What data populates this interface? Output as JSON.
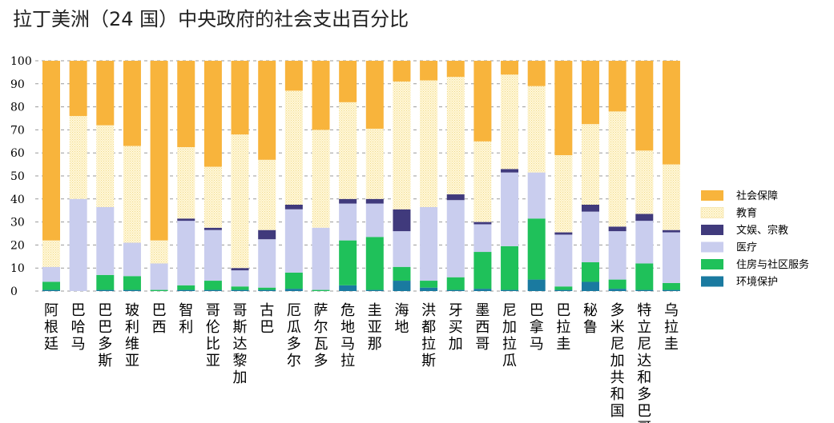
{
  "chart_data": {
    "type": "bar",
    "stacked": true,
    "title": "拉丁美洲（24 国）中央政府的社会支出百分比",
    "ylim": [
      0,
      100
    ],
    "yticks": [
      0,
      10,
      20,
      30,
      40,
      50,
      60,
      70,
      80,
      90,
      100
    ],
    "grid": true,
    "legend_position": "right",
    "categories": [
      "阿根廷",
      "巴哈马",
      "巴巴多斯",
      "玻利维亚",
      "巴西",
      "智利",
      "哥伦比亚",
      "哥斯达黎加",
      "古巴",
      "厄瓜多尔",
      "萨尔瓦多",
      "危地马拉",
      "圭亚那",
      "海地",
      "洪都拉斯",
      "牙买加",
      "墨西哥",
      "尼加拉瓜",
      "巴拿马",
      "巴拉圭",
      "秘鲁",
      "多米尼加共和国",
      "特立尼达和多巴哥",
      "乌拉圭"
    ],
    "series": [
      {
        "name": "环境保护",
        "color": "#1a7aa0",
        "values": [
          0.5,
          0,
          0.5,
          0.5,
          0,
          0.5,
          0.5,
          0.5,
          0.5,
          1,
          0,
          2.5,
          0.5,
          4.5,
          1.5,
          0.5,
          1,
          0.5,
          5,
          0.5,
          4,
          1,
          0.5,
          0.5
        ]
      },
      {
        "name": "住房与社区服务",
        "color": "#1fc15a",
        "values": [
          3.5,
          0,
          6.5,
          6,
          0.5,
          2,
          4,
          1.5,
          1,
          7,
          0.5,
          19.5,
          23,
          6,
          3,
          5.5,
          16,
          19,
          26.5,
          1.5,
          8.5,
          4,
          11.5,
          3
        ]
      },
      {
        "name": "医疗",
        "color": "#c9cdee",
        "values": [
          6.5,
          40,
          29.5,
          14.5,
          11.5,
          28,
          22,
          7,
          21,
          27.5,
          27,
          16,
          14.5,
          15.5,
          32,
          33.5,
          12,
          32,
          20,
          22.5,
          22,
          21,
          18.5,
          22
        ]
      },
      {
        "name": "文娱、宗教",
        "color": "#403a7c",
        "values": [
          0,
          0,
          0,
          0,
          0,
          1,
          1,
          1,
          4,
          2,
          0,
          2,
          2,
          9.5,
          0,
          2.5,
          1,
          1.5,
          0,
          1,
          3,
          2,
          3,
          1
        ]
      },
      {
        "name": "教育",
        "color": "#fdf2c2",
        "values": [
          11.5,
          36,
          35.5,
          42,
          10,
          31,
          26.5,
          58,
          30.5,
          49.5,
          42.5,
          42,
          30.5,
          55.5,
          55,
          51,
          35,
          41,
          37.5,
          33.5,
          35,
          50,
          27.5,
          28.5
        ]
      },
      {
        "name": "社会保障",
        "color": "#f8b43c",
        "values": [
          78,
          24,
          28,
          37,
          78,
          37.5,
          46,
          32,
          43,
          13,
          30,
          18,
          29.5,
          9,
          8.5,
          7,
          35,
          6,
          11,
          41,
          27.5,
          22,
          39,
          45
        ]
      }
    ]
  }
}
